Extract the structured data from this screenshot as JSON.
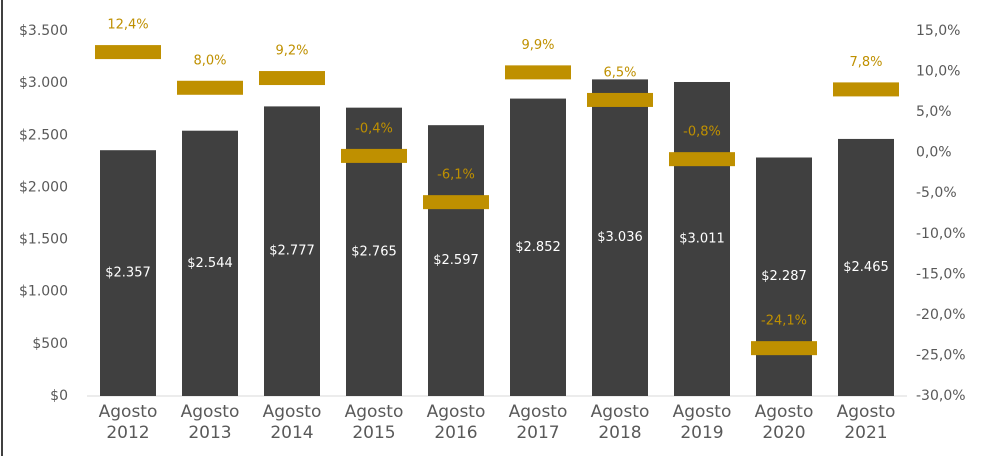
{
  "chart_data": {
    "type": "bar-marker",
    "categories": [
      "Agosto 2012",
      "Agosto 2013",
      "Agosto 2014",
      "Agosto 2015",
      "Agosto 2016",
      "Agosto 2017",
      "Agosto 2018",
      "Agosto 2019",
      "Agosto 2020",
      "Agosto 2021"
    ],
    "series": [
      {
        "color": "#404040",
        "values": [
          2357,
          2544,
          2777,
          2765,
          2597,
          2852,
          3036,
          3011,
          2287,
          2465
        ],
        "value_labels": [
          "$2.357",
          "$2.544",
          "$2.777",
          "$2.765",
          "$2.597",
          "$2.852",
          "$3.036",
          "$3.011",
          "$2.287",
          "$2.465"
        ]
      },
      {
        "color": "#bf9000",
        "axis": "y2",
        "values": [
          12.4,
          8.0,
          9.2,
          -0.4,
          -6.1,
          9.9,
          6.5,
          -0.8,
          -24.1,
          7.8
        ],
        "value_labels": [
          "12,4%",
          "8,0%",
          "9,2%",
          "-0,4%",
          "-6,1%",
          "9,9%",
          "6,5%",
          "-0,8%",
          "-24,1%",
          "7,8%"
        ]
      }
    ],
    "ylim": [
      0,
      3500
    ],
    "yticks": [
      {
        "value": 0,
        "label": "$0"
      },
      {
        "value": 500,
        "label": "$500"
      },
      {
        "value": 1000,
        "label": "$1.000"
      },
      {
        "value": 1500,
        "label": "$1.500"
      },
      {
        "value": 2000,
        "label": "$2.000"
      },
      {
        "value": 2500,
        "label": "$2.500"
      },
      {
        "value": 3000,
        "label": "$3.000"
      },
      {
        "value": 3500,
        "label": "$3.500"
      }
    ],
    "y2lim": [
      -30,
      15
    ],
    "y2ticks": [
      {
        "value": -30,
        "label": "-30,0%"
      },
      {
        "value": -25,
        "label": "-25,0%"
      },
      {
        "value": -20,
        "label": "-20,0%"
      },
      {
        "value": -15,
        "label": "-15,0%"
      },
      {
        "value": -10,
        "label": "-10,0%"
      },
      {
        "value": -5,
        "label": "-5,0%"
      },
      {
        "value": 0,
        "label": "0,0%"
      },
      {
        "value": 5,
        "label": "5,0%"
      },
      {
        "value": 10,
        "label": "10,0%"
      },
      {
        "value": 15,
        "label": "15,0%"
      }
    ]
  }
}
